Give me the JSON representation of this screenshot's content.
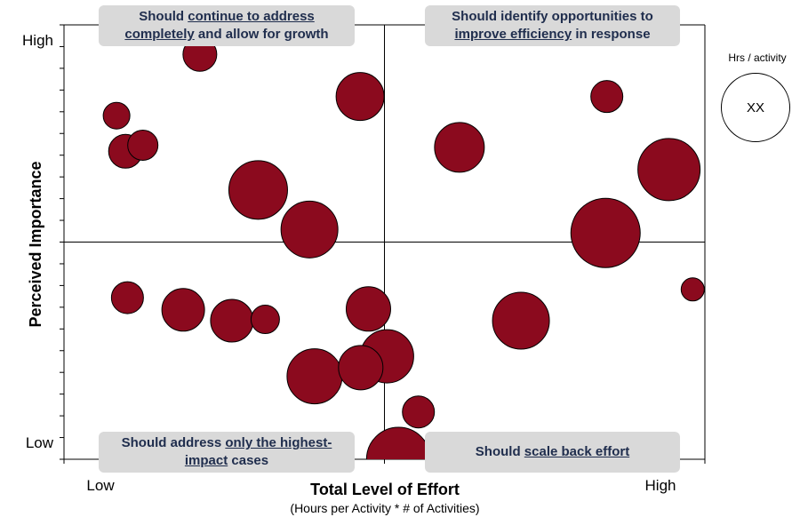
{
  "chart_data": {
    "type": "bubble",
    "xlabel": "Total Level of Effort",
    "xlabel_sub": "(Hours per Activity * # of Activities)",
    "ylabel": "Perceived Importance",
    "x_tick_labels": {
      "low": "Low",
      "high": "High"
    },
    "y_tick_labels": {
      "low": "Low",
      "high": "High"
    },
    "xlim": [
      0,
      100
    ],
    "ylim": [
      0,
      100
    ],
    "quadrant_split": {
      "x": 50,
      "y": 50
    },
    "grid": false,
    "bubble_color": "#8b0a1e",
    "points": [
      {
        "x": 21.2,
        "y": 93.2,
        "size": 19
      },
      {
        "x": 8.2,
        "y": 79.1,
        "size": 15
      },
      {
        "x": 9.6,
        "y": 70.9,
        "size": 19
      },
      {
        "x": 12.3,
        "y": 72.3,
        "size": 17
      },
      {
        "x": 30.3,
        "y": 62.0,
        "size": 33
      },
      {
        "x": 46.2,
        "y": 83.5,
        "size": 27
      },
      {
        "x": 38.3,
        "y": 52.9,
        "size": 32
      },
      {
        "x": 61.7,
        "y": 71.8,
        "size": 28
      },
      {
        "x": 84.7,
        "y": 83.5,
        "size": 18
      },
      {
        "x": 94.4,
        "y": 66.7,
        "size": 35
      },
      {
        "x": 84.5,
        "y": 52.1,
        "size": 39
      },
      {
        "x": 98.1,
        "y": 39.1,
        "size": 13
      },
      {
        "x": 9.9,
        "y": 37.2,
        "size": 18
      },
      {
        "x": 18.6,
        "y": 34.4,
        "size": 24
      },
      {
        "x": 26.2,
        "y": 31.9,
        "size": 24
      },
      {
        "x": 31.4,
        "y": 32.2,
        "size": 16
      },
      {
        "x": 47.5,
        "y": 34.6,
        "size": 25
      },
      {
        "x": 71.3,
        "y": 31.9,
        "size": 32
      },
      {
        "x": 50.4,
        "y": 23.7,
        "size": 30
      },
      {
        "x": 39.1,
        "y": 19.1,
        "size": 31
      },
      {
        "x": 46.3,
        "y": 21.1,
        "size": 25
      },
      {
        "x": 55.3,
        "y": 10.9,
        "size": 18
      },
      {
        "x": 52.2,
        "y": 0.0,
        "size": 36
      }
    ],
    "legend": {
      "title": "Hrs / activity",
      "sample_label": "XX",
      "position": "top-right"
    },
    "annotations": [
      {
        "id": "top-left",
        "segments": [
          {
            "text": "Should ",
            "u": false
          },
          {
            "text": "continue to address completely",
            "u": true
          },
          {
            "text": " and allow for growth",
            "u": false
          }
        ]
      },
      {
        "id": "top-right",
        "segments": [
          {
            "text": "Should identify opportunities to ",
            "u": false
          },
          {
            "text": "improve efficiency",
            "u": true
          },
          {
            "text": " in response",
            "u": false
          }
        ]
      },
      {
        "id": "bottom-left",
        "segments": [
          {
            "text": "Should address ",
            "u": false
          },
          {
            "text": "only the highest-impact",
            "u": true
          },
          {
            "text": " cases",
            "u": false
          }
        ]
      },
      {
        "id": "bottom-right",
        "segments": [
          {
            "text": "Should ",
            "u": false
          },
          {
            "text": "scale back effort",
            "u": true
          }
        ]
      }
    ]
  }
}
